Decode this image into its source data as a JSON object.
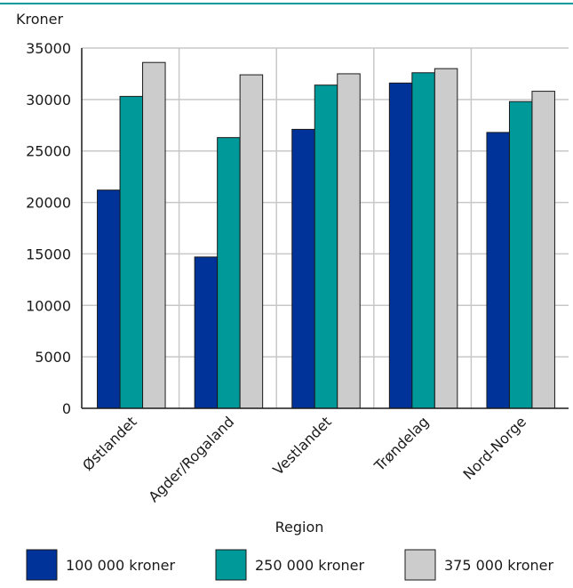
{
  "chart_data": {
    "type": "bar",
    "ylabel": "Kroner",
    "xlabel": "Region",
    "ylim": [
      0,
      35000
    ],
    "yticks": [
      0,
      5000,
      10000,
      15000,
      20000,
      25000,
      30000,
      35000
    ],
    "grid": true,
    "legend_position": "bottom",
    "categories": [
      "Østlandet",
      "Agder/Rogaland",
      "Vestlandet",
      "Trøndelag",
      "Nord-Norge"
    ],
    "series": [
      {
        "name": "100 000 kroner",
        "color": "#003399",
        "values": [
          21200,
          14700,
          27100,
          31600,
          26800
        ]
      },
      {
        "name": "250 000 kroner",
        "color": "#009999",
        "values": [
          30300,
          26300,
          31400,
          32600,
          29800
        ]
      },
      {
        "name": "375 000 kroner",
        "color": "#cccccc",
        "values": [
          33600,
          32400,
          32500,
          33000,
          30800
        ]
      }
    ],
    "accent_color": "#009999"
  }
}
